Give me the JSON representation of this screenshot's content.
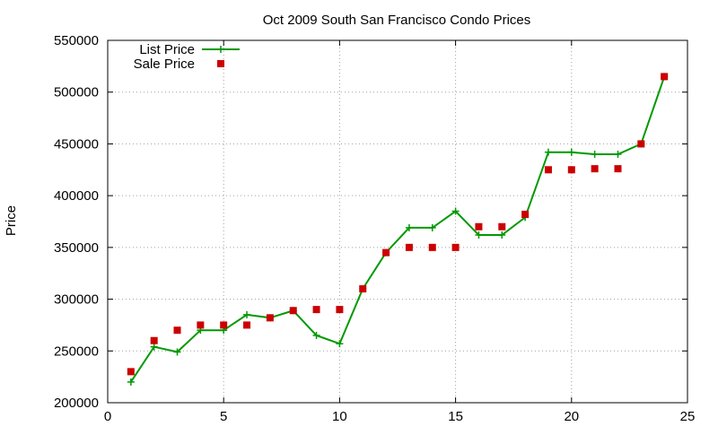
{
  "chart_data": {
    "type": "line",
    "title": "Oct 2009 South San Francisco Condo Prices",
    "xlabel": "",
    "ylabel": "Price",
    "xlim": [
      0,
      25
    ],
    "ylim": [
      200000,
      550000
    ],
    "x_ticks": [
      0,
      5,
      10,
      15,
      20,
      25
    ],
    "y_ticks": [
      200000,
      250000,
      300000,
      350000,
      400000,
      450000,
      500000,
      550000
    ],
    "grid": true,
    "legend_position": "top-left",
    "series": [
      {
        "name": "List Price",
        "style": "line+cross-markers",
        "color": "#009900",
        "points": [
          [
            1,
            220000
          ],
          [
            2,
            254000
          ],
          [
            3,
            249000
          ],
          [
            4,
            270000
          ],
          [
            5,
            270000
          ],
          [
            6,
            285000
          ],
          [
            7,
            282000
          ],
          [
            8,
            289000
          ],
          [
            9,
            265000
          ],
          [
            10,
            257000
          ],
          [
            11,
            310000
          ],
          [
            12,
            345000
          ],
          [
            13,
            369000
          ],
          [
            14,
            369000
          ],
          [
            15,
            385000
          ],
          [
            16,
            362000
          ],
          [
            17,
            362000
          ],
          [
            18,
            379000
          ],
          [
            19,
            442000
          ],
          [
            20,
            442000
          ],
          [
            21,
            440000
          ],
          [
            22,
            440000
          ],
          [
            23,
            450000
          ],
          [
            24,
            515000
          ]
        ]
      },
      {
        "name": "Sale Price",
        "style": "square-markers",
        "color": "#cc0000",
        "points": [
          [
            1,
            230000
          ],
          [
            2,
            260000
          ],
          [
            3,
            270000
          ],
          [
            4,
            275000
          ],
          [
            5,
            275000
          ],
          [
            6,
            275000
          ],
          [
            7,
            282000
          ],
          [
            8,
            289000
          ],
          [
            9,
            290000
          ],
          [
            10,
            290000
          ],
          [
            11,
            310000
          ],
          [
            12,
            345000
          ],
          [
            13,
            350000
          ],
          [
            14,
            350000
          ],
          [
            15,
            350000
          ],
          [
            16,
            370000
          ],
          [
            17,
            370000
          ],
          [
            18,
            382000
          ],
          [
            19,
            425000
          ],
          [
            20,
            425000
          ],
          [
            21,
            426000
          ],
          [
            22,
            426000
          ],
          [
            23,
            450000
          ],
          [
            24,
            515000
          ]
        ]
      }
    ]
  }
}
